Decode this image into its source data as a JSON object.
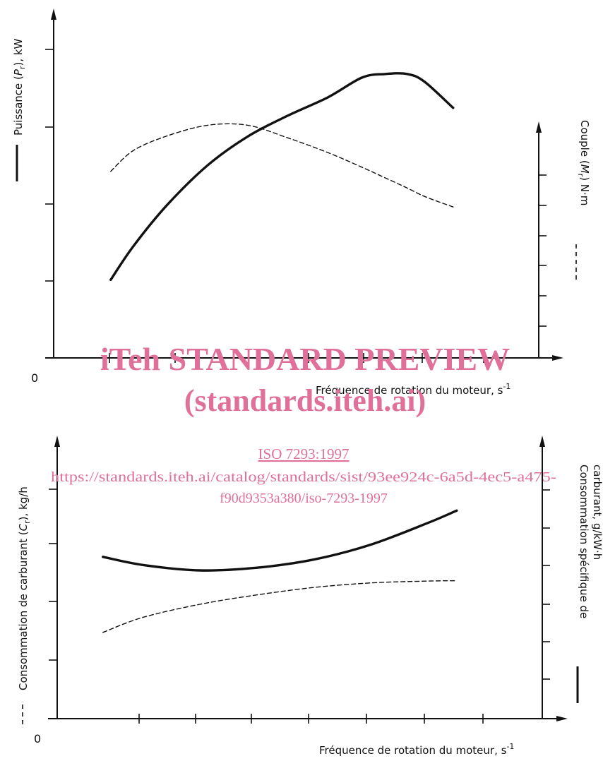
{
  "chart_data": [
    {
      "type": "line",
      "title": "",
      "xlabel": "Fréquence de rotation du moteur, s",
      "xlabel_sup": "-1",
      "origin_label": "0",
      "x": [
        1.0,
        1.4,
        2.0,
        2.7,
        3.4,
        4.1,
        4.8,
        5.4,
        5.8,
        6.2,
        6.5,
        7.0
      ],
      "xlim": [
        0,
        8.5
      ],
      "series": [
        {
          "name": "Puissance (Pr), kW",
          "axis": "left",
          "style": "solid",
          "values": [
            1.5,
            2.15,
            2.95,
            3.7,
            4.25,
            4.65,
            5.0,
            5.38,
            5.45,
            5.45,
            5.3,
            4.8
          ]
        },
        {
          "name": "Couple (Mr) N·m",
          "axis": "right",
          "style": "dashed",
          "values": [
            4.45,
            4.95,
            5.3,
            5.55,
            5.55,
            5.25,
            4.9,
            4.55,
            4.3,
            4.05,
            3.85,
            3.6
          ]
        }
      ],
      "left_axis": {
        "label": "Puissance (Pr), kW",
        "ylim": [
          0,
          6.6
        ]
      },
      "right_axis": {
        "label": "Couple (Mr) N·m",
        "ylim": [
          0,
          8.2
        ]
      },
      "legend": {
        "left": "solid",
        "right": "dashed"
      }
    },
    {
      "type": "line",
      "title": "",
      "xlabel": "Fréquence de rotation du moteur, s",
      "xlabel_sup": "-1",
      "origin_label": "0",
      "x": [
        0.8,
        1.5,
        2.5,
        3.5,
        4.5,
        5.5,
        6.5,
        7.0
      ],
      "xlim": [
        0,
        8.5
      ],
      "series": [
        {
          "name": "Consommation spécifique de carburant, g/kW·h",
          "axis": "right",
          "style": "solid",
          "values": [
            5.95,
            5.65,
            5.45,
            5.55,
            5.85,
            6.4,
            7.2,
            7.65
          ]
        },
        {
          "name": "Consommation de carburant (Cr), kg/h",
          "axis": "left",
          "style": "dashed",
          "values": [
            2.3,
            2.7,
            3.05,
            3.3,
            3.5,
            3.62,
            3.67,
            3.68
          ]
        }
      ],
      "left_axis": {
        "label": "Consommation de carburant (Cr), kg/h",
        "ylim": [
          0,
          7.4
        ]
      },
      "right_axis": {
        "label": "Consommation spécifique de carburant, g/kW·h",
        "ylim": [
          0,
          10.2
        ]
      },
      "legend": {
        "left": "dashed",
        "right": "solid"
      }
    }
  ],
  "labels": {
    "top_left_prefix": "Puissance (",
    "top_left_var": "P",
    "top_left_sub": "r",
    "top_left_suffix": "), kW",
    "top_right_prefix": "Couple (",
    "top_right_var": "M",
    "top_right_sub": "r",
    "top_right_suffix": ") N·m",
    "bottom_left_prefix": "Consommation de carburant (",
    "bottom_left_var": "C",
    "bottom_left_sub": "r",
    "bottom_left_suffix": "), kg/h",
    "bottom_right_line1": "Consommation spécifique de",
    "bottom_right_line2": "carburant, g/kW·h"
  },
  "watermark": {
    "line1": "iTeh STANDARD PREVIEW",
    "line2": "(standards.iteh.ai)",
    "line3": "ISO 7293:1997",
    "line4": "https://standards.iteh.ai/catalog/standards/sist/93ee924c-6a5d-4ec5-a475-",
    "line5": "f90d9353a380/iso-7293-1997"
  }
}
